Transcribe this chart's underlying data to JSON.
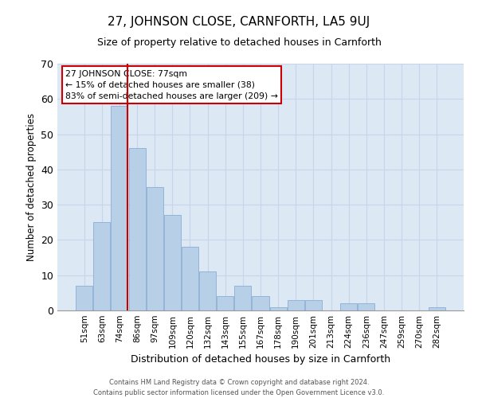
{
  "title": "27, JOHNSON CLOSE, CARNFORTH, LA5 9UJ",
  "subtitle": "Size of property relative to detached houses in Carnforth",
  "xlabel": "Distribution of detached houses by size in Carnforth",
  "ylabel": "Number of detached properties",
  "footer_line1": "Contains HM Land Registry data © Crown copyright and database right 2024.",
  "footer_line2": "Contains public sector information licensed under the Open Government Licence v3.0.",
  "bar_labels": [
    "51sqm",
    "63sqm",
    "74sqm",
    "86sqm",
    "97sqm",
    "109sqm",
    "120sqm",
    "132sqm",
    "143sqm",
    "155sqm",
    "167sqm",
    "178sqm",
    "190sqm",
    "201sqm",
    "213sqm",
    "224sqm",
    "236sqm",
    "247sqm",
    "259sqm",
    "270sqm",
    "282sqm"
  ],
  "bar_values": [
    7,
    25,
    58,
    46,
    35,
    27,
    18,
    11,
    4,
    7,
    4,
    1,
    3,
    3,
    0,
    2,
    2,
    0,
    0,
    0,
    1
  ],
  "bar_color": "#b8cfe8",
  "bar_edge_color": "#8aaed4",
  "grid_color": "#c8d4e8",
  "bg_color": "#dde8f5",
  "vline_color": "#cc0000",
  "annotation_text": "27 JOHNSON CLOSE: 77sqm\n← 15% of detached houses are smaller (38)\n83% of semi-detached houses are larger (209) →",
  "annotation_box_color": "#ffffff",
  "annotation_box_edge": "#cc0000",
  "ylim": [
    0,
    70
  ],
  "yticks": [
    0,
    10,
    20,
    30,
    40,
    50,
    60,
    70
  ]
}
